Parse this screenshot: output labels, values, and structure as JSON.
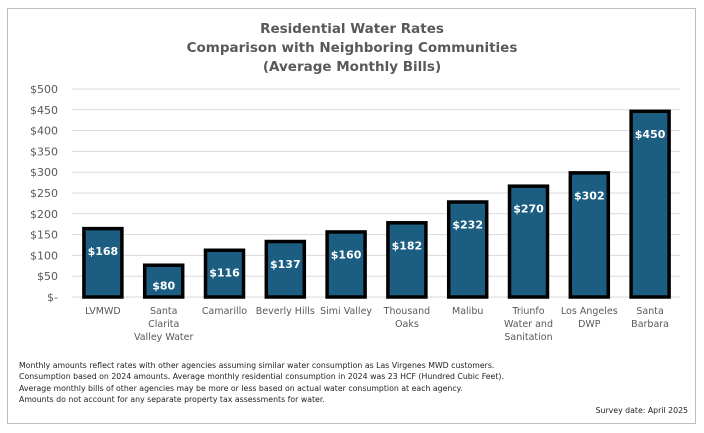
{
  "chart_data": {
    "type": "bar",
    "title": [
      "Residential Water Rates",
      "Comparison with Neighboring Communities",
      "(Average Monthly Bills)"
    ],
    "categories": [
      [
        "LVMWD"
      ],
      [
        "Santa",
        "Clarita",
        "Valley Water"
      ],
      [
        "Camarillo"
      ],
      [
        "Beverly Hills"
      ],
      [
        "Simi Valley"
      ],
      [
        "Thousand",
        "Oaks"
      ],
      [
        "Malibu"
      ],
      [
        "Triunfo",
        "Water and",
        "Sanitation"
      ],
      [
        "Los Angeles",
        "DWP"
      ],
      [
        "Santa",
        "Barbara"
      ]
    ],
    "values": [
      168,
      80,
      116,
      137,
      160,
      182,
      232,
      270,
      302,
      450
    ],
    "data_labels": [
      "$168",
      "$80",
      "$116",
      "$137",
      "$160",
      "$182",
      "$232",
      "$270",
      "$302",
      "$450"
    ],
    "xlabel": "",
    "ylabel": "",
    "ylim": [
      0,
      500
    ],
    "yticks": [
      0,
      50,
      100,
      150,
      200,
      250,
      300,
      350,
      400,
      450,
      500
    ],
    "ytick_labels": [
      "$-",
      "$50",
      "$100",
      "$150",
      "$200",
      "$250",
      "$300",
      "$350",
      "$400",
      "$450",
      "$500"
    ],
    "grid": true,
    "legend": "none",
    "colors": {
      "bar_fill": "#1b5e82",
      "bar_outline": "#000000",
      "grid": "#d9d9d9",
      "text": "#595959"
    }
  },
  "notes": [
    "Monthly amounts reflect rates with other agencies assuming similar water consumption as Las Virgenes MWD customers.",
    "Consumption based on 2024 amounts.  Average monthly residential consumption in 2024 was 23 HCF (Hundred Cubic Feet).",
    "Average monthly bills of other agencies may be more or less based on actual water consumption at each agency.",
    "Amounts do not account for any separate property tax assessments for water."
  ],
  "survey_date": "Survey date: April 2025"
}
